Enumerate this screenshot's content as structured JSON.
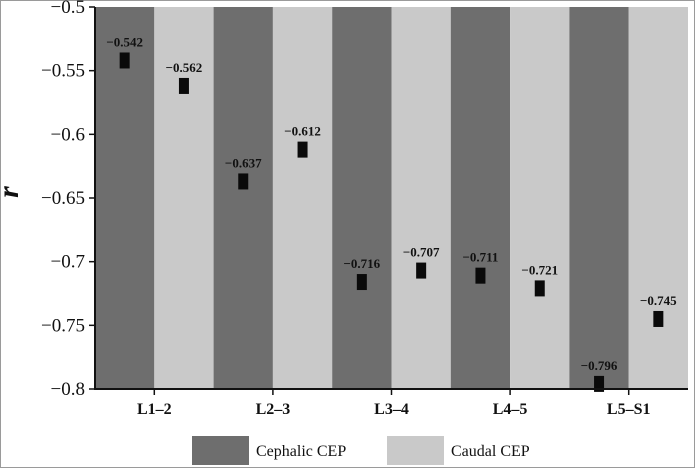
{
  "chart_data": {
    "type": "bar",
    "title": "",
    "xlabel": "",
    "ylabel": "r",
    "ylim": [
      -0.8,
      -0.5
    ],
    "yticks": [
      -0.5,
      -0.55,
      -0.6,
      -0.65,
      -0.7,
      -0.75,
      -0.8
    ],
    "ytick_labels": [
      "−0.5",
      "−0.55",
      "−0.6",
      "−0.65",
      "−0.7",
      "−0.75",
      "−0.8"
    ],
    "categories": [
      "L1–2",
      "L2–3",
      "L3–4",
      "L4–5",
      "L5–S1"
    ],
    "series": [
      {
        "name": "Cephalic CEP",
        "color": "#6e6e6e",
        "values": [
          -0.542,
          -0.637,
          -0.716,
          -0.711,
          -0.796
        ],
        "labels": [
          "−0.542",
          "−0.637",
          "−0.716",
          "−0.711",
          "−0.796"
        ]
      },
      {
        "name": "Caudal CEP",
        "color": "#c9c9c9",
        "values": [
          -0.562,
          -0.612,
          -0.707,
          -0.721,
          -0.745
        ],
        "labels": [
          "−0.562",
          "−0.612",
          "−0.707",
          "−0.721",
          "−0.745"
        ]
      }
    ],
    "legend": [
      "Cephalic CEP",
      "Caudal CEP"
    ],
    "legend_position": "bottom-center",
    "grid": false
  }
}
